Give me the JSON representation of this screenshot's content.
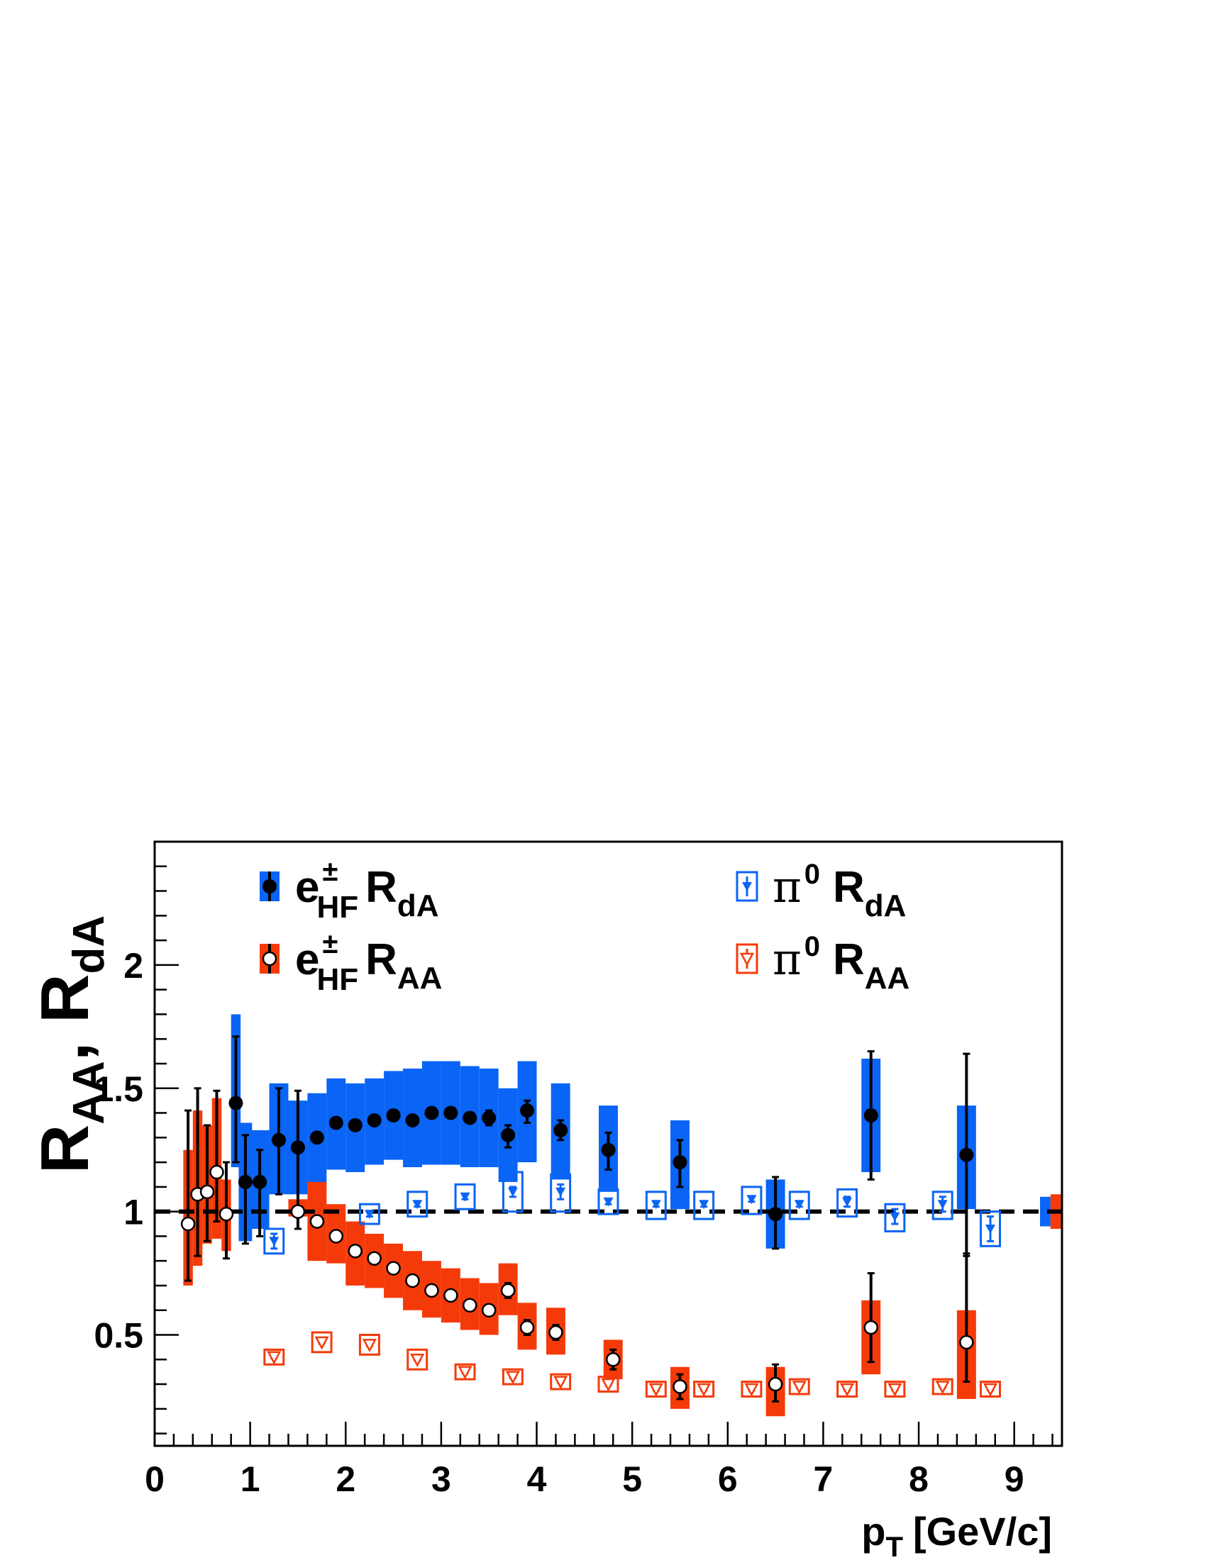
{
  "chart_data": {
    "type": "scatter",
    "title": "",
    "xlabel": "p",
    "xlabel_sub": "T",
    "xlabel_unit": "[GeV/c]",
    "ylabel_parts": [
      {
        "main": "R",
        "sub": "AA"
      },
      {
        "main": ", R",
        "sub": "dA"
      }
    ],
    "xlim": [
      0,
      9.5
    ],
    "ylim": [
      0.05,
      2.5
    ],
    "x_ticks": [
      0,
      1,
      2,
      3,
      4,
      5,
      6,
      7,
      8,
      9
    ],
    "y_ticks": [
      0.5,
      1,
      1.5,
      2
    ],
    "x_tick_labels": [
      "0",
      "1",
      "2",
      "3",
      "4",
      "5",
      "6",
      "7",
      "8",
      "9"
    ],
    "y_tick_labels": [
      "0.5",
      "1",
      "1.5",
      "2"
    ],
    "reference_line_y": 1.0,
    "grid": false,
    "legend_position": "top",
    "colors": {
      "blue": "#0a64f5",
      "red": "#f53a0a",
      "black": "#000000"
    },
    "series": [
      {
        "name": "eHF RdA",
        "legend": {
          "main": "e",
          "sup": "±",
          "sub": "HF",
          "tail": "R",
          "tail_sub": "dA"
        },
        "style": "filled-circle-box",
        "color": "#0a64f5",
        "x": [
          0.85,
          0.95,
          1.1,
          1.3,
          1.5,
          1.7,
          1.9,
          2.1,
          2.3,
          2.5,
          2.7,
          2.9,
          3.1,
          3.3,
          3.5,
          3.7,
          3.9,
          4.25,
          4.75,
          5.5,
          6.5,
          7.5,
          8.5
        ],
        "y": [
          1.44,
          1.12,
          1.12,
          1.29,
          1.26,
          1.3,
          1.36,
          1.35,
          1.37,
          1.39,
          1.37,
          1.4,
          1.4,
          1.38,
          1.38,
          1.31,
          1.41,
          1.33,
          1.25,
          1.2,
          0.99,
          1.39,
          1.23
        ],
        "stat_lo": [
          1.2,
          0.87,
          0.9,
          1.07,
          0.93,
          1.28,
          1.35,
          1.34,
          1.36,
          1.38,
          1.36,
          1.39,
          1.39,
          1.36,
          1.35,
          1.26,
          1.36,
          1.29,
          1.17,
          1.1,
          0.85,
          1.13,
          0.82
        ],
        "stat_hi": [
          1.71,
          1.31,
          1.25,
          1.5,
          1.49,
          1.32,
          1.37,
          1.36,
          1.38,
          1.4,
          1.38,
          1.41,
          1.41,
          1.4,
          1.41,
          1.35,
          1.45,
          1.37,
          1.32,
          1.29,
          1.14,
          1.65,
          1.64
        ],
        "sys_lo": [
          1.18,
          0.88,
          0.93,
          1.07,
          1.07,
          1.1,
          1.17,
          1.16,
          1.19,
          1.21,
          1.18,
          1.19,
          1.19,
          1.18,
          1.18,
          1.12,
          1.2,
          1.13,
          1.08,
          1.01,
          0.85,
          1.16,
          1.01
        ],
        "sys_hi": [
          1.8,
          1.36,
          1.33,
          1.52,
          1.45,
          1.48,
          1.54,
          1.52,
          1.54,
          1.57,
          1.58,
          1.61,
          1.61,
          1.59,
          1.58,
          1.5,
          1.61,
          1.52,
          1.43,
          1.37,
          1.13,
          1.62,
          1.43
        ],
        "sys_half_width": [
          0.05,
          0.07,
          0.1,
          0.1,
          0.1,
          0.1,
          0.1,
          0.1,
          0.1,
          0.1,
          0.1,
          0.1,
          0.1,
          0.1,
          0.1,
          0.1,
          0.1,
          0.1,
          0.1,
          0.1,
          0.1,
          0.1,
          0.1
        ]
      },
      {
        "name": "eHF RAA",
        "legend": {
          "main": "e",
          "sup": "±",
          "sub": "HF",
          "tail": "R",
          "tail_sub": "AA"
        },
        "style": "open-circle-box",
        "color": "#f53a0a",
        "x": [
          0.35,
          0.45,
          0.55,
          0.65,
          0.75,
          1.5,
          1.7,
          1.9,
          2.1,
          2.3,
          2.5,
          2.7,
          2.9,
          3.1,
          3.3,
          3.5,
          3.7,
          3.9,
          4.2,
          4.8,
          5.5,
          6.5,
          7.5,
          8.5
        ],
        "y": [
          0.95,
          1.07,
          1.08,
          1.16,
          0.99,
          1.0,
          0.96,
          0.9,
          0.84,
          0.81,
          0.77,
          0.72,
          0.68,
          0.66,
          0.62,
          0.6,
          0.68,
          0.53,
          0.51,
          0.4,
          0.29,
          0.3,
          0.53,
          0.47
        ],
        "stat_lo": [
          0.72,
          0.82,
          0.88,
          0.96,
          0.81,
          0.99,
          0.95,
          0.89,
          0.83,
          0.8,
          0.76,
          0.71,
          0.67,
          0.65,
          0.61,
          0.59,
          0.65,
          0.5,
          0.48,
          0.36,
          0.24,
          0.23,
          0.39,
          0.31
        ],
        "stat_hi": [
          1.41,
          1.5,
          1.35,
          1.49,
          1.2,
          1.01,
          0.97,
          0.91,
          0.85,
          0.82,
          0.78,
          0.73,
          0.69,
          0.67,
          0.63,
          0.61,
          0.71,
          0.56,
          0.54,
          0.44,
          0.34,
          0.38,
          0.75,
          0.83
        ],
        "sys_lo": [
          0.7,
          0.78,
          0.87,
          0.89,
          0.84,
          0.98,
          0.8,
          0.79,
          0.7,
          0.69,
          0.65,
          0.6,
          0.57,
          0.55,
          0.52,
          0.5,
          0.58,
          0.44,
          0.42,
          0.32,
          0.2,
          0.17,
          0.34,
          0.24
        ],
        "sys_hi": [
          1.25,
          1.41,
          1.35,
          1.46,
          1.13,
          1.05,
          1.12,
          1.03,
          0.96,
          0.91,
          0.87,
          0.84,
          0.8,
          0.77,
          0.73,
          0.71,
          0.79,
          0.63,
          0.61,
          0.48,
          0.37,
          0.37,
          0.64,
          0.6
        ],
        "sys_half_width": [
          0.05,
          0.05,
          0.05,
          0.05,
          0.05,
          0.1,
          0.1,
          0.1,
          0.1,
          0.1,
          0.1,
          0.1,
          0.1,
          0.1,
          0.1,
          0.1,
          0.1,
          0.1,
          0.1,
          0.1,
          0.1,
          0.1,
          0.1,
          0.1
        ]
      },
      {
        "name": "pi0 RdA",
        "legend": {
          "main": "π",
          "sup": "0",
          "sub": "",
          "tail": "R",
          "tail_sub": "dA"
        },
        "style": "filled-triangle-openbox",
        "color": "#0a64f5",
        "x": [
          1.25,
          2.25,
          2.75,
          3.25,
          3.75,
          4.25,
          4.75,
          5.25,
          5.75,
          6.25,
          6.75,
          7.25,
          7.75,
          8.25,
          8.75
        ],
        "y": [
          0.88,
          0.99,
          1.03,
          1.06,
          1.08,
          1.08,
          1.04,
          1.03,
          1.03,
          1.05,
          1.03,
          1.04,
          0.98,
          1.03,
          0.93
        ],
        "stat_lo": [
          0.85,
          0.98,
          1.02,
          1.05,
          1.06,
          1.05,
          1.03,
          1.02,
          1.02,
          1.04,
          1.02,
          1.02,
          0.95,
          1.0,
          0.88
        ],
        "stat_hi": [
          0.91,
          1.0,
          1.04,
          1.07,
          1.1,
          1.11,
          1.05,
          1.04,
          1.04,
          1.06,
          1.04,
          1.06,
          1.01,
          1.06,
          0.98
        ],
        "sys_lo": [
          0.83,
          0.95,
          0.98,
          1.01,
          1.0,
          1.0,
          0.99,
          0.97,
          0.97,
          0.99,
          0.97,
          0.98,
          0.92,
          0.97,
          0.86
        ],
        "sys_hi": [
          0.93,
          1.03,
          1.08,
          1.11,
          1.16,
          1.15,
          1.09,
          1.08,
          1.08,
          1.1,
          1.08,
          1.09,
          1.03,
          1.08,
          1.0
        ],
        "sys_half_width": [
          0.1,
          0.1,
          0.1,
          0.1,
          0.1,
          0.1,
          0.1,
          0.1,
          0.1,
          0.1,
          0.1,
          0.1,
          0.1,
          0.1,
          0.1
        ]
      },
      {
        "name": "pi0 RAA",
        "legend": {
          "main": "π",
          "sup": "0",
          "sub": "",
          "tail": "R",
          "tail_sub": "AA"
        },
        "style": "open-triangle-openbox",
        "color": "#f53a0a",
        "x": [
          1.25,
          1.75,
          2.25,
          2.75,
          3.25,
          3.75,
          4.25,
          4.75,
          5.25,
          5.75,
          6.25,
          6.75,
          7.25,
          7.75,
          8.25,
          8.75
        ],
        "y": [
          0.41,
          0.47,
          0.46,
          0.4,
          0.35,
          0.33,
          0.31,
          0.3,
          0.28,
          0.28,
          0.28,
          0.29,
          0.28,
          0.28,
          0.29,
          0.28
        ],
        "stat_lo": [
          0.405,
          0.465,
          0.455,
          0.395,
          0.345,
          0.325,
          0.305,
          0.295,
          0.275,
          0.275,
          0.275,
          0.285,
          0.275,
          0.275,
          0.285,
          0.275
        ],
        "stat_hi": [
          0.415,
          0.475,
          0.465,
          0.405,
          0.355,
          0.335,
          0.315,
          0.305,
          0.285,
          0.285,
          0.285,
          0.295,
          0.285,
          0.285,
          0.295,
          0.285
        ],
        "sys_lo": [
          0.38,
          0.43,
          0.42,
          0.36,
          0.32,
          0.3,
          0.28,
          0.27,
          0.25,
          0.25,
          0.25,
          0.26,
          0.25,
          0.25,
          0.26,
          0.25
        ],
        "sys_hi": [
          0.44,
          0.51,
          0.5,
          0.44,
          0.38,
          0.36,
          0.34,
          0.33,
          0.31,
          0.31,
          0.31,
          0.32,
          0.31,
          0.31,
          0.32,
          0.31
        ],
        "sys_half_width": [
          0.1,
          0.1,
          0.1,
          0.1,
          0.1,
          0.1,
          0.1,
          0.1,
          0.1,
          0.1,
          0.1,
          0.1,
          0.1,
          0.1,
          0.1,
          0.1
        ]
      }
    ],
    "global_uncertainty": [
      {
        "series": "eHF RdA",
        "x_lo": 9.27,
        "x_hi": 9.38,
        "y_lo": 0.94,
        "y_hi": 1.06,
        "color": "#0a64f5"
      },
      {
        "series": "eHF RAA",
        "x_lo": 9.38,
        "x_hi": 9.5,
        "y_lo": 0.93,
        "y_hi": 1.07,
        "color": "#f53a0a"
      }
    ]
  }
}
